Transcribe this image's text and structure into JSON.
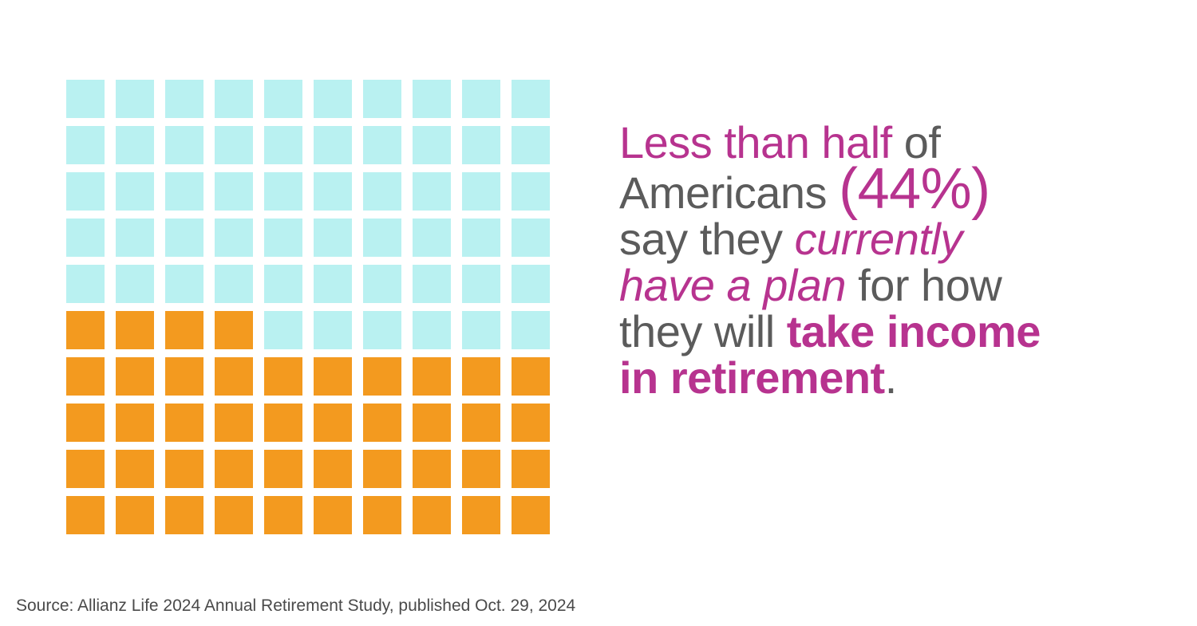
{
  "chart_data": {
    "type": "waffle",
    "total_cells": 100,
    "grid": [
      10,
      10
    ],
    "series": [
      {
        "name": "",
        "value": 56,
        "color": "#b9f1f1"
      },
      {
        "name": "",
        "value": 44,
        "color": "#f39a1f"
      }
    ]
  },
  "headline": {
    "part_less_than_half": "Less than half",
    "part_of": " of",
    "part_americans": "Americans ",
    "part_percent": "(44%)",
    "part_say_they": "say they ",
    "part_currently": "currently",
    "part_have_a_plan": "have a plan",
    "part_for_how": " for how",
    "part_they_will": "they will ",
    "part_take_income": "take income",
    "part_in_retirement": "in retirement",
    "part_period": "."
  },
  "source": "Source: Allianz Life 2024 Annual Retirement Study, published Oct. 29, 2024"
}
